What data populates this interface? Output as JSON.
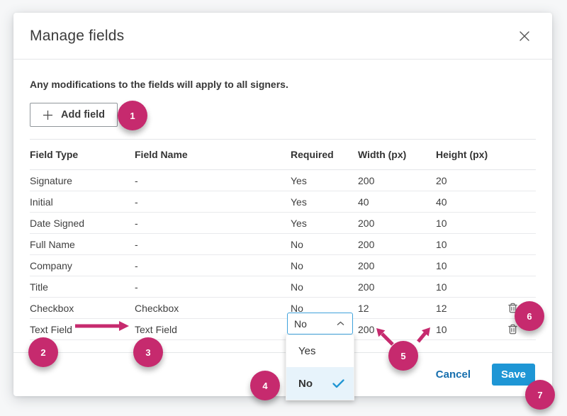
{
  "modal": {
    "title": "Manage fields",
    "intro": "Any modifications to the fields will apply to all signers.",
    "add_field_label": "Add field",
    "cancel_label": "Cancel",
    "save_label": "Save"
  },
  "table": {
    "headers": [
      "Field Type",
      "Field Name",
      "Required",
      "Width (px)",
      "Height (px)",
      ""
    ],
    "rows": [
      {
        "type": "Signature",
        "name": "-",
        "required": "Yes",
        "width": "200",
        "height": "20",
        "deletable": false
      },
      {
        "type": "Initial",
        "name": "-",
        "required": "Yes",
        "width": "40",
        "height": "40",
        "deletable": false
      },
      {
        "type": "Date Signed",
        "name": "-",
        "required": "Yes",
        "width": "200",
        "height": "10",
        "deletable": false
      },
      {
        "type": "Full Name",
        "name": "-",
        "required": "No",
        "width": "200",
        "height": "10",
        "deletable": false
      },
      {
        "type": "Company",
        "name": "-",
        "required": "No",
        "width": "200",
        "height": "10",
        "deletable": false
      },
      {
        "type": "Title",
        "name": "-",
        "required": "No",
        "width": "200",
        "height": "10",
        "deletable": false
      },
      {
        "type": "Checkbox",
        "name": "Checkbox",
        "required": "No",
        "width": "12",
        "height": "12",
        "deletable": true
      },
      {
        "type": "Text Field",
        "name": "Text Field",
        "required": "No",
        "width": "200",
        "height": "10",
        "deletable": true,
        "required_editing": true
      }
    ]
  },
  "dropdown": {
    "selected": "No",
    "options": [
      {
        "label": "Yes",
        "selected": false
      },
      {
        "label": "No",
        "selected": true
      }
    ]
  },
  "annotations": {
    "badges": [
      "1",
      "2",
      "3",
      "4",
      "5",
      "6",
      "7"
    ]
  },
  "icons": {
    "close": "close-icon",
    "add": "plus-icon",
    "delete": "trash-icon",
    "collapse": "chevron-up-icon",
    "selected_option": "check-icon"
  },
  "colors": {
    "annotation_magenta": "#c62a6e",
    "save_button_blue": "#1e96d5",
    "cancel_link_blue": "#176fae",
    "select_border_blue": "#3fa2dc",
    "selected_option_bg": "#e7f3fb",
    "check_blue": "#2196d3"
  }
}
